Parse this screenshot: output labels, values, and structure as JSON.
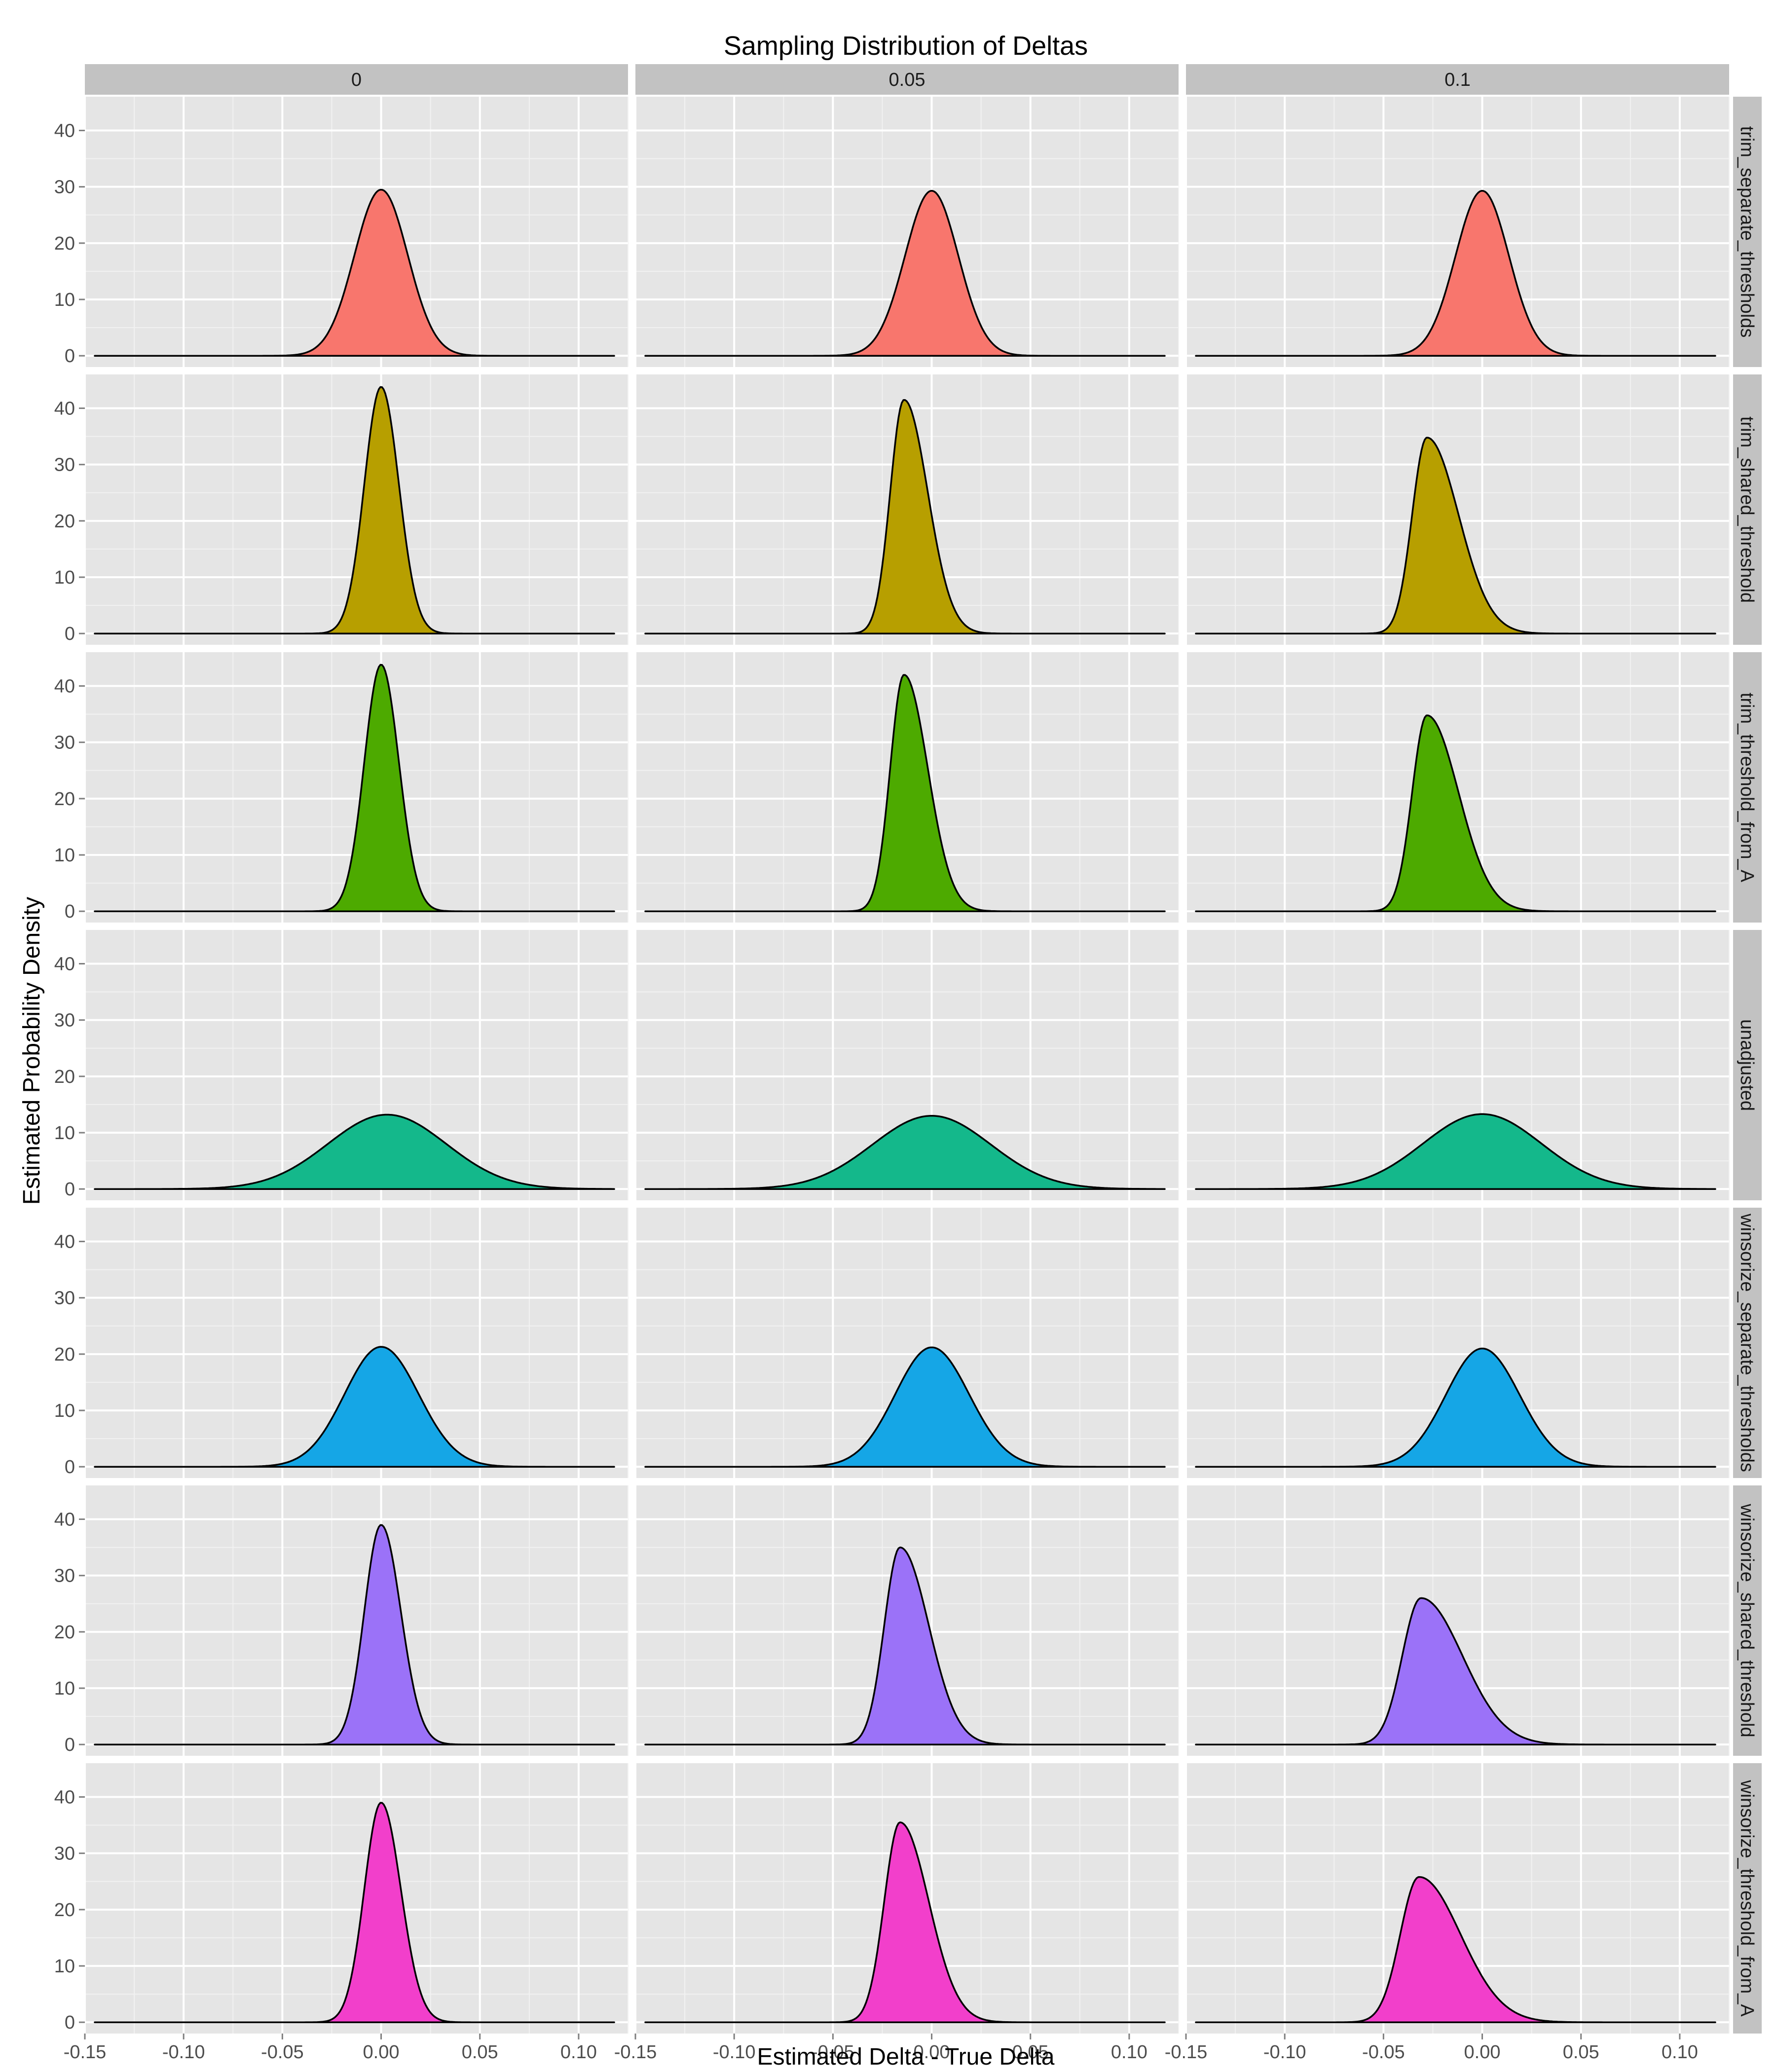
{
  "chart_data": {
    "type": "area",
    "title": "Sampling Distribution of Deltas",
    "xlabel": "Estimated Delta - True Delta",
    "ylabel": "Estimated Probability Density",
    "xlim": [
      -0.15,
      0.125
    ],
    "ylim": [
      -2,
      46
    ],
    "x_ticks": [
      -0.15,
      -0.1,
      -0.05,
      0.0,
      0.05,
      0.1
    ],
    "x_tick_labels": [
      "-0.15",
      "-0.10",
      "-0.05",
      "0.00",
      "0.05",
      "0.10"
    ],
    "y_ticks": [
      0,
      10,
      20,
      30,
      40
    ],
    "y_tick_labels": [
      "0",
      "10",
      "20",
      "30",
      "40"
    ],
    "grid": true,
    "legend": "none",
    "density_x_range": [
      -0.145,
      0.118
    ],
    "facet_columns": [
      "0",
      "0.05",
      "0.1"
    ],
    "facet_rows": [
      {
        "name": "trim_separate_thresholds",
        "color": "#F8766D"
      },
      {
        "name": "trim_shared_threshold",
        "color": "#B79F00"
      },
      {
        "name": "trim_threshold_from_A",
        "color": "#4DAA00"
      },
      {
        "name": "unadjusted",
        "color": "#14B88B"
      },
      {
        "name": "winsorize_separate_thresholds",
        "color": "#15A6E6"
      },
      {
        "name": "winsorize_shared_threshold",
        "color": "#9B72F8"
      },
      {
        "name": "winsorize_threshold_from_A",
        "color": "#F23FCB"
      }
    ],
    "panels": [
      [
        {
          "peak_x": 0.0,
          "peak_y": 29.5,
          "sd_left": 0.0135,
          "sd_right": 0.0135
        },
        {
          "peak_x": 0.0,
          "peak_y": 29.3,
          "sd_left": 0.0135,
          "sd_right": 0.0135
        },
        {
          "peak_x": 0.0,
          "peak_y": 29.3,
          "sd_left": 0.0135,
          "sd_right": 0.0135
        }
      ],
      [
        {
          "peak_x": 0.0,
          "peak_y": 43.8,
          "sd_left": 0.0085,
          "sd_right": 0.009
        },
        {
          "peak_x": -0.014,
          "peak_y": 41.5,
          "sd_left": 0.007,
          "sd_right": 0.012
        },
        {
          "peak_x": -0.028,
          "peak_y": 34.8,
          "sd_left": 0.0075,
          "sd_right": 0.016
        }
      ],
      [
        {
          "peak_x": 0.0,
          "peak_y": 43.8,
          "sd_left": 0.0085,
          "sd_right": 0.009
        },
        {
          "peak_x": -0.014,
          "peak_y": 42.0,
          "sd_left": 0.007,
          "sd_right": 0.012
        },
        {
          "peak_x": -0.028,
          "peak_y": 34.8,
          "sd_left": 0.0075,
          "sd_right": 0.016
        }
      ],
      [
        {
          "peak_x": 0.003,
          "peak_y": 13.2,
          "sd_left": 0.03,
          "sd_right": 0.03
        },
        {
          "peak_x": 0.0,
          "peak_y": 13.0,
          "sd_left": 0.03,
          "sd_right": 0.03
        },
        {
          "peak_x": 0.0,
          "peak_y": 13.3,
          "sd_left": 0.03,
          "sd_right": 0.03
        }
      ],
      [
        {
          "peak_x": 0.0,
          "peak_y": 21.3,
          "sd_left": 0.0185,
          "sd_right": 0.019
        },
        {
          "peak_x": 0.0,
          "peak_y": 21.2,
          "sd_left": 0.0185,
          "sd_right": 0.019
        },
        {
          "peak_x": 0.0,
          "peak_y": 21.0,
          "sd_left": 0.0185,
          "sd_right": 0.019
        }
      ],
      [
        {
          "peak_x": 0.0,
          "peak_y": 39.0,
          "sd_left": 0.0085,
          "sd_right": 0.01
        },
        {
          "peak_x": -0.016,
          "peak_y": 35.0,
          "sd_left": 0.008,
          "sd_right": 0.0145
        },
        {
          "peak_x": -0.031,
          "peak_y": 26.0,
          "sd_left": 0.0095,
          "sd_right": 0.021
        }
      ],
      [
        {
          "peak_x": 0.0,
          "peak_y": 39.0,
          "sd_left": 0.0085,
          "sd_right": 0.01
        },
        {
          "peak_x": -0.016,
          "peak_y": 35.5,
          "sd_left": 0.008,
          "sd_right": 0.0145
        },
        {
          "peak_x": -0.032,
          "peak_y": 25.8,
          "sd_left": 0.0095,
          "sd_right": 0.021
        }
      ]
    ]
  }
}
